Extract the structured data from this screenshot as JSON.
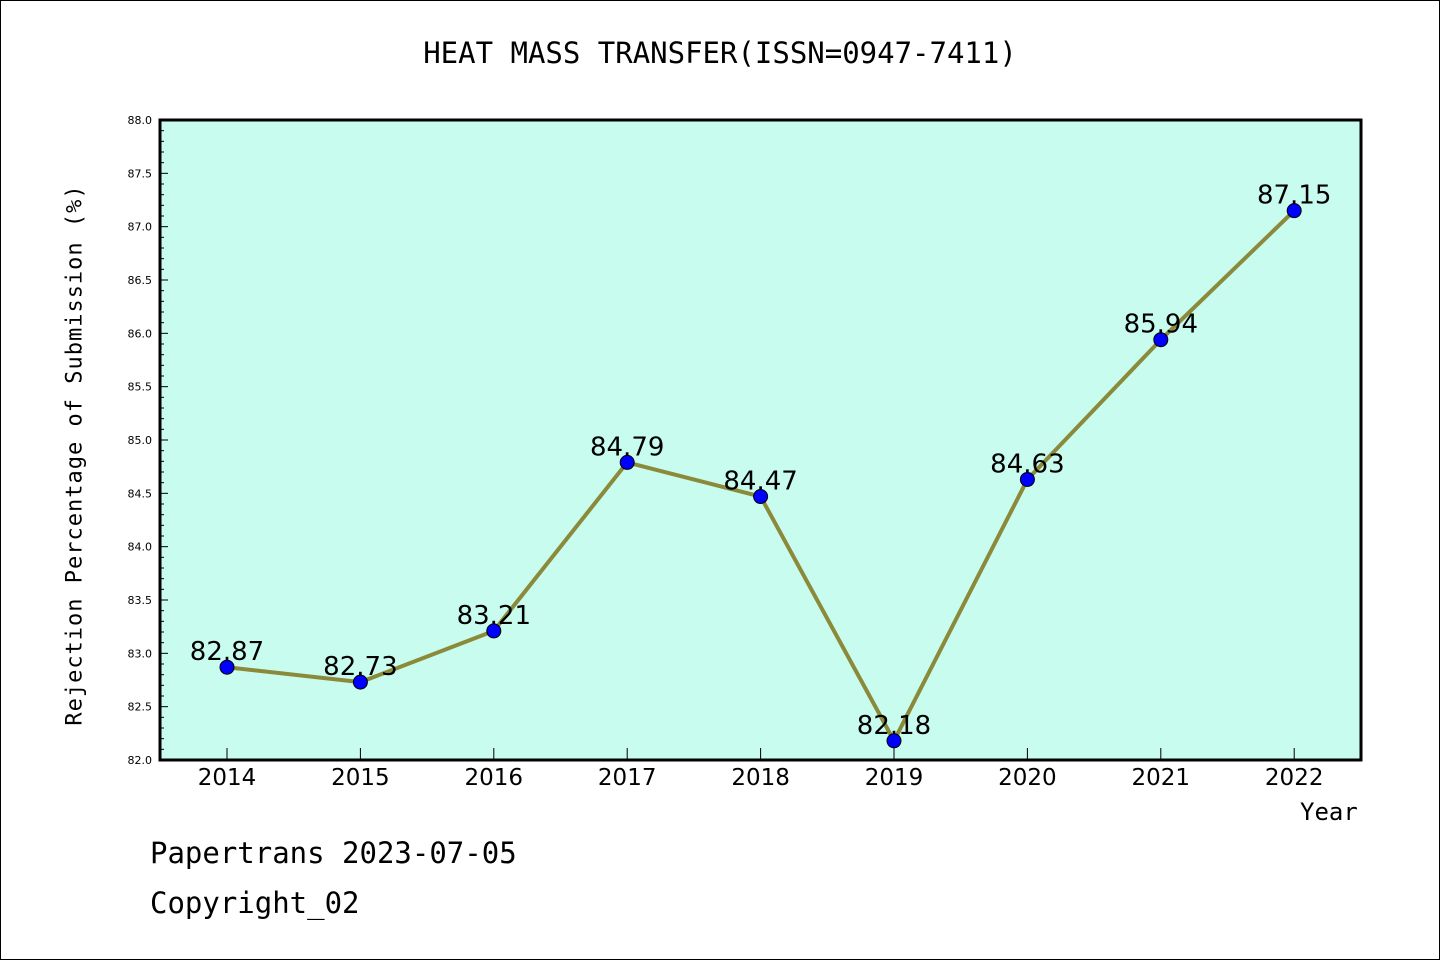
{
  "chart_data": {
    "type": "line",
    "title": "HEAT MASS TRANSFER(ISSN=0947-7411)",
    "xlabel": "Year",
    "ylabel": "Rejection Percentage of Submission (%)",
    "categories": [
      "2014",
      "2015",
      "2016",
      "2017",
      "2018",
      "2019",
      "2020",
      "2021",
      "2022"
    ],
    "series": [
      {
        "values": [
          82.87,
          82.73,
          83.21,
          84.79,
          84.47,
          82.18,
          84.63,
          85.94,
          87.15
        ],
        "data_labels": [
          "82.87",
          "82.73",
          "83.21",
          "84.79",
          "84.47",
          "82.18",
          "84.63",
          "85.94",
          "87.15"
        ]
      }
    ],
    "ylim": [
      82.0,
      88.0
    ],
    "yticks": [
      "82.0",
      "82.5",
      "83.0",
      "83.5",
      "84.0",
      "84.5",
      "85.0",
      "85.5",
      "86.0",
      "86.5",
      "87.0",
      "87.5",
      "88.0"
    ],
    "grid": false,
    "legend": "none",
    "colors": {
      "plot_background": "#c8fcee",
      "line": "#8a8a3a",
      "marker": "#0000ff"
    }
  },
  "footer": {
    "line1": "Papertrans 2023-07-05",
    "line2": "Copyright_02"
  }
}
